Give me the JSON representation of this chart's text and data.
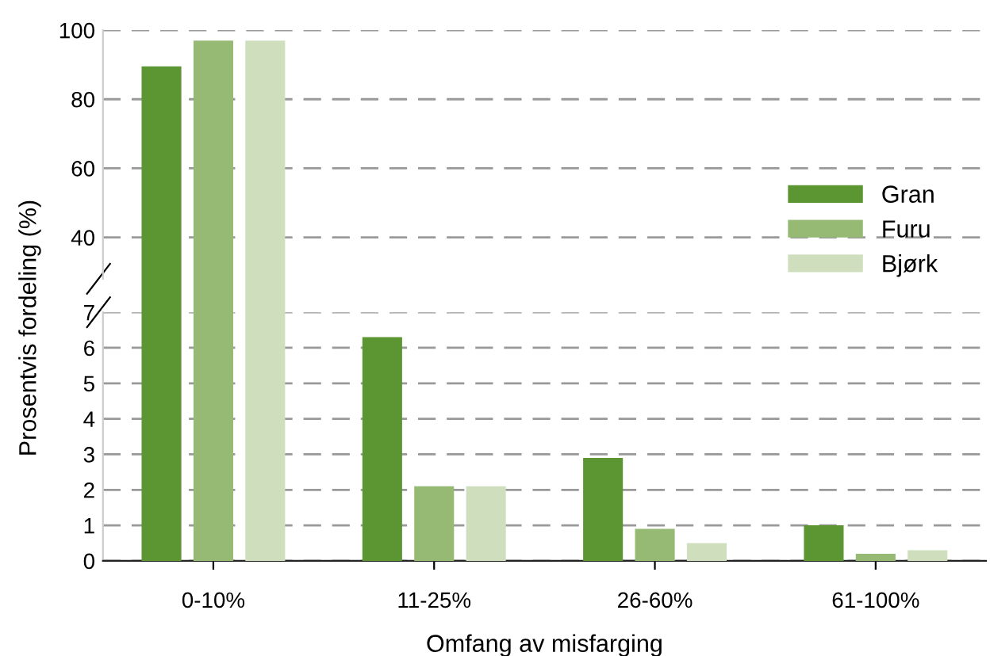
{
  "chart_data": [
    {
      "type": "bar",
      "categories": [
        null,
        null,
        null,
        null
      ],
      "ylim": [
        28,
        100
      ],
      "yticks": [
        40,
        60,
        80,
        100
      ],
      "grid": "y",
      "legend": "bottom right",
      "tick_labels": "y",
      "series": [
        {
          "name": "Gran",
          "color": "#5c9632",
          "values": [
            89.5,
            null,
            null,
            null
          ]
        },
        {
          "name": "Furu",
          "color": "#96ba74",
          "values": [
            97,
            null,
            null,
            null
          ]
        },
        {
          "name": "Bjørk",
          "color": "#cfdfbe",
          "values": [
            97,
            null,
            null,
            null
          ]
        }
      ]
    },
    {
      "type": "bar",
      "categories": [
        "0-10%",
        "11-25%",
        "26-60%",
        "61-100%"
      ],
      "ylim": [
        0,
        7
      ],
      "yticks": [
        0,
        1,
        2,
        3,
        4,
        5,
        6,
        7
      ],
      "grid": "y",
      "xlabel": "Omfang av misfarging",
      "ylabel": "Prosentvis fordeling (%)",
      "series": [
        {
          "color": "#5c9632",
          "values": [
            null,
            6.3,
            2.9,
            1.0
          ]
        },
        {
          "color": "#96ba74",
          "values": [
            null,
            2.1,
            0.9,
            0.2
          ]
        },
        {
          "color": "#cfdfbe",
          "values": [
            null,
            2.1,
            0.5,
            0.3
          ]
        }
      ]
    }
  ]
}
